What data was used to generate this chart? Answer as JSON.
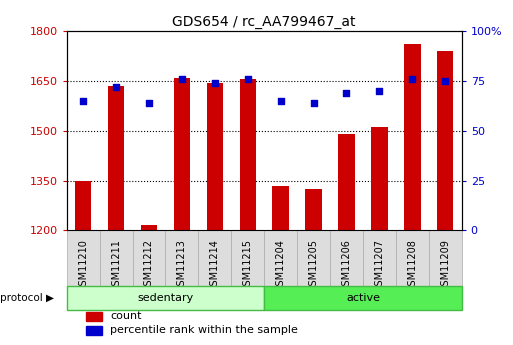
{
  "title": "GDS654 / rc_AA799467_at",
  "samples": [
    "GSM11210",
    "GSM11211",
    "GSM11212",
    "GSM11213",
    "GSM11214",
    "GSM11215",
    "GSM11204",
    "GSM11205",
    "GSM11206",
    "GSM11207",
    "GSM11208",
    "GSM11209"
  ],
  "count_values": [
    1350,
    1635,
    1215,
    1660,
    1645,
    1655,
    1335,
    1325,
    1490,
    1510,
    1760,
    1740
  ],
  "percentile_values": [
    65,
    72,
    64,
    76,
    74,
    76,
    65,
    64,
    69,
    70,
    76,
    75
  ],
  "ylim_left": [
    1200,
    1800
  ],
  "ylim_right": [
    0,
    100
  ],
  "yticks_left": [
    1200,
    1350,
    1500,
    1650,
    1800
  ],
  "yticks_right": [
    0,
    25,
    50,
    75,
    100
  ],
  "groups": [
    {
      "label": "sedentary",
      "start": 0,
      "end": 6,
      "light_color": "#ccffcc",
      "border_color": "#44bb44"
    },
    {
      "label": "active",
      "start": 6,
      "end": 12,
      "light_color": "#55ee55",
      "border_color": "#44bb44"
    }
  ],
  "bar_color": "#cc0000",
  "dot_color": "#0000cc",
  "bar_width": 0.5,
  "protocol_label": "protocol",
  "legend_items": [
    {
      "color": "#cc0000",
      "label": "count"
    },
    {
      "color": "#0000cc",
      "label": "percentile rank within the sample"
    }
  ],
  "tick_label_color_left": "#cc0000",
  "tick_label_color_right": "#0000cc",
  "sample_box_color": "#dddddd",
  "sample_box_edge": "#aaaaaa"
}
